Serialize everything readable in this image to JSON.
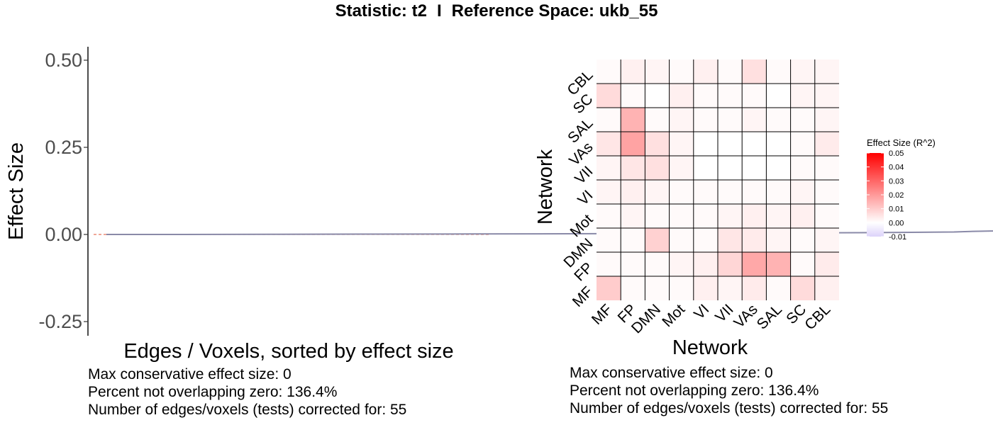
{
  "figure_title": {
    "statistic_part": "Statistic: t2",
    "separator": "I",
    "space_part": "Reference Space: ukb_55"
  },
  "chart_data": [
    {
      "type": "line",
      "xlabel": "Edges / Voxels, sorted by effect size",
      "ylabel": "Effect Size",
      "ylim": [
        -0.27,
        0.53
      ],
      "yticks": [
        "0.50",
        "0.25",
        "0.00",
        "-0.25"
      ],
      "ytick_values": [
        0.5,
        0.25,
        0.0,
        -0.25
      ],
      "reference_line": 0.0,
      "reference_color": "#e8735a",
      "line_color": "#8a8aa8",
      "band_color": "#b6b6cc",
      "x": [
        1,
        5,
        10,
        15,
        20,
        25,
        30,
        35,
        40,
        45,
        46,
        47,
        48,
        49,
        50,
        51,
        52,
        53,
        54,
        55
      ],
      "values": [
        0.0,
        0.0,
        0.0005,
        0.001,
        0.0015,
        0.002,
        0.003,
        0.004,
        0.005,
        0.007,
        0.009,
        0.01,
        0.01,
        0.011,
        0.012,
        0.013,
        0.017,
        0.021,
        0.023,
        0.025
      ],
      "captions": [
        "Max conservative effect size: 0",
        "Percent not overlapping zero: 136.4%",
        "Number of edges/voxels (tests) corrected for: 55"
      ]
    },
    {
      "type": "heatmap",
      "xlabel": "Network",
      "ylabel": "Network",
      "x_categories": [
        "MF",
        "FP",
        "DMN",
        "Mot",
        "VI",
        "VII",
        "VAs",
        "SAL",
        "SC",
        "CBL"
      ],
      "y_categories": [
        "MF",
        "FP",
        "DMN",
        "Mot",
        "VI",
        "VII",
        "VAs",
        "SAL",
        "SC",
        "CBL"
      ],
      "legend_title": "Effect Size (R^2)",
      "legend_ticks": [
        "0.05",
        "0.04",
        "0.03",
        "0.02",
        "0.01",
        "0.00",
        "-0.01"
      ],
      "legend_tick_values": [
        0.05,
        0.04,
        0.03,
        0.02,
        0.01,
        0.0,
        -0.01
      ],
      "scale": {
        "min": -0.01,
        "max": 0.05,
        "low_color": "#dcd2fa",
        "mid_color": "#ffffff",
        "high_color": "#ff0000"
      },
      "values": [
        [
          0.01,
          0.001,
          0.001,
          0.001,
          0.003,
          0.002,
          0.004,
          0.001,
          0.007,
          0.003
        ],
        [
          0.001,
          0.001,
          0.001,
          0.002,
          0.003,
          0.008,
          0.017,
          0.015,
          0.001,
          0.004
        ],
        [
          0.001,
          0.001,
          0.009,
          0.001,
          0.001,
          0.005,
          0.004,
          0.002,
          0.001,
          0.002
        ],
        [
          0.001,
          0.002,
          0.001,
          0.001,
          0.001,
          0.002,
          0.003,
          0.002,
          0.003,
          0.001
        ],
        [
          0.002,
          0.003,
          0.002,
          0.001,
          0.001,
          0.001,
          0.001,
          0.001,
          0.002,
          0.001
        ],
        [
          0.002,
          0.005,
          0.006,
          0.002,
          0.0,
          0.0,
          0.0,
          0.0,
          0.001,
          0.001
        ],
        [
          0.005,
          0.018,
          0.006,
          0.002,
          0.0,
          0.0,
          0.0,
          0.0,
          0.001,
          0.004
        ],
        [
          0.001,
          0.015,
          0.001,
          0.002,
          0.001,
          0.001,
          0.002,
          0.001,
          0.001,
          0.002
        ],
        [
          0.007,
          0.001,
          0.0,
          0.003,
          0.001,
          0.001,
          0.001,
          0.0,
          0.002,
          0.002
        ],
        [
          0.001,
          0.003,
          0.002,
          0.001,
          0.003,
          0.001,
          0.006,
          0.001,
          0.002,
          0.002
        ]
      ],
      "captions": [
        "Max conservative effect size: 0",
        "Percent not overlapping zero: 136.4%",
        "Number of edges/voxels (tests) corrected for: 55"
      ]
    }
  ]
}
